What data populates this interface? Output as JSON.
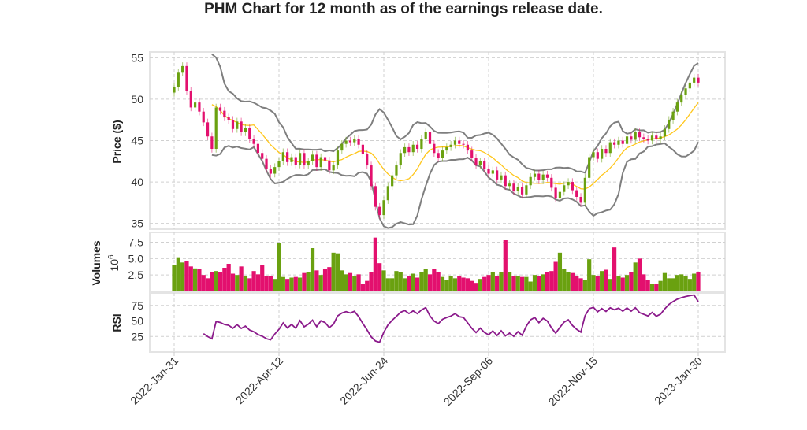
{
  "chart_data": {
    "type": "candlestick",
    "title": "PHM Chart for 12 month as of the earnings release date.",
    "x_tick_labels": [
      "2022-Jan-31",
      "2022-Apr-12",
      "2022-Jun-24",
      "2022-Sep-06",
      "2022-Nov-15",
      "2023-Jan-30"
    ],
    "x_tick_indices": [
      0,
      25,
      50,
      75,
      100,
      125
    ],
    "sampling": "one candle per 2 trading days (approx.)",
    "price_panel": {
      "ylabel": "Price ($)",
      "ylim": [
        34.3,
        55.7
      ],
      "yticks": [
        35,
        40,
        45,
        50,
        55
      ],
      "sma_period": 10,
      "bollinger_period": 10,
      "bollinger_std": 2
    },
    "close": [
      51.5,
      53.2,
      54.0,
      51.0,
      49.0,
      49.6,
      48.5,
      47.2,
      45.5,
      44.0,
      49.0,
      48.6,
      47.8,
      47.5,
      46.4,
      47.3,
      46.0,
      46.5,
      45.2,
      44.6,
      43.5,
      42.8,
      41.6,
      41.0,
      41.8,
      42.5,
      43.6,
      42.4,
      43.0,
      42.1,
      43.5,
      42.0,
      42.5,
      43.3,
      41.8,
      43.0,
      42.6,
      41.4,
      42.0,
      43.8,
      44.6,
      45.0,
      44.8,
      45.2,
      44.5,
      43.4,
      42.0,
      39.5,
      37.0,
      36.0,
      37.8,
      39.5,
      40.8,
      42.0,
      43.5,
      44.2,
      43.6,
      44.5,
      44.0,
      45.2,
      46.0,
      44.6,
      43.5,
      42.9,
      43.8,
      44.2,
      44.5,
      45.0,
      44.6,
      44.5,
      43.8,
      42.9,
      42.0,
      42.5,
      41.6,
      41.0,
      41.4,
      40.3,
      40.8,
      39.5,
      39.8,
      38.9,
      39.4,
      38.5,
      39.6,
      40.6,
      41.0,
      40.2,
      40.9,
      40.5,
      39.3,
      38.0,
      38.8,
      39.6,
      40.0,
      39.0,
      38.2,
      37.5,
      40.5,
      43.0,
      43.6,
      42.8,
      44.0,
      43.5,
      44.8,
      44.5,
      45.0,
      44.6,
      45.5,
      45.1,
      46.0,
      45.4,
      45.2,
      45.0,
      45.6,
      45.2,
      45.5,
      46.4,
      47.5,
      48.5,
      49.6,
      50.5,
      51.3,
      52.0,
      52.6,
      52.0
    ],
    "first_open": 50.8,
    "volume_panel": {
      "ylabel": "Volumes",
      "unit_label": "10",
      "unit_exp": "6",
      "ylim": [
        0,
        9
      ],
      "yticks": [
        "2.5",
        "5.0",
        "7.5"
      ],
      "ytick_values": [
        2.5,
        5.0,
        7.5
      ]
    },
    "volume_millions": [
      4.0,
      5.2,
      4.4,
      4.6,
      3.8,
      3.5,
      3.4,
      2.5,
      2.0,
      2.9,
      3.1,
      2.9,
      3.6,
      4.2,
      2.7,
      2.5,
      3.8,
      2.4,
      2.0,
      3.1,
      2.6,
      4.0,
      2.3,
      2.4,
      1.9,
      7.4,
      2.2,
      1.9,
      2.1,
      2.2,
      2.1,
      2.8,
      3.0,
      6.6,
      3.2,
      2.5,
      3.4,
      3.7,
      5.9,
      5.8,
      3.2,
      2.6,
      2.8,
      2.4,
      2.6,
      1.2,
      1.6,
      3.0,
      8.2,
      4.3,
      3.2,
      2.0,
      2.0,
      3.1,
      2.9,
      2.0,
      2.3,
      2.7,
      2.1,
      2.9,
      3.4,
      2.6,
      3.4,
      2.9,
      2.2,
      1.8,
      2.4,
      2.0,
      2.4,
      2.1,
      2.0,
      1.6,
      1.3,
      1.9,
      2.2,
      2.5,
      3.0,
      2.3,
      3.0,
      7.8,
      3.0,
      2.3,
      2.3,
      2.2,
      2.2,
      1.5,
      2.5,
      2.4,
      2.6,
      3.0,
      3.1,
      4.5,
      5.9,
      3.4,
      3.0,
      2.8,
      2.4,
      2.0,
      1.8,
      4.9,
      2.5,
      2.3,
      3.1,
      3.3,
      1.9,
      6.7,
      2.4,
      2.1,
      2.5,
      3.0,
      4.4,
      5.0,
      2.6,
      1.7,
      1.2,
      1.2,
      1.6,
      2.8,
      2.0,
      2.0,
      2.5,
      2.6,
      2.3,
      1.9,
      2.7,
      3.0
    ],
    "rsi_panel": {
      "ylabel": "RSI",
      "ylim": [
        0,
        95
      ],
      "yticks": [
        25,
        50,
        75
      ],
      "period": 7
    },
    "colors": {
      "up": "#6aa110",
      "down": "#e3106e",
      "band": "#7f7f7f",
      "sma": "#ffc61a",
      "rsi": "#8b1a8b"
    }
  }
}
